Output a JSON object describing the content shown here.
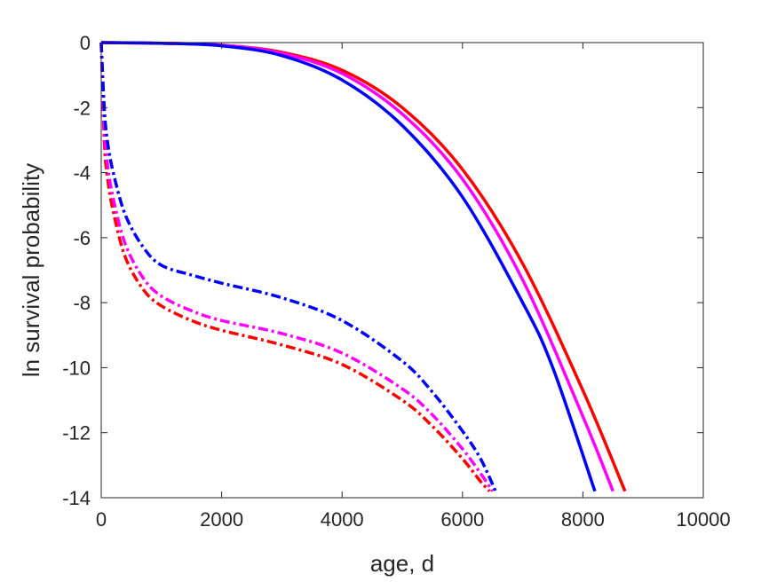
{
  "chart_data": {
    "type": "line",
    "title": "",
    "xlabel": "age, d",
    "ylabel": "ln survival probability",
    "xlim": [
      0,
      10000
    ],
    "ylim": [
      -14,
      0
    ],
    "xticks": [
      0,
      2000,
      4000,
      6000,
      8000,
      10000
    ],
    "yticks": [
      0,
      -2,
      -4,
      -6,
      -8,
      -10,
      -12,
      -14
    ],
    "xtick_labels": [
      "0",
      "2000",
      "4000",
      "6000",
      "8000",
      "10000"
    ],
    "ytick_labels": [
      "0",
      "-2",
      "-4",
      "-6",
      "-8",
      "-10",
      "-12",
      "-14"
    ],
    "grid": false,
    "legend": "none",
    "series": [
      {
        "color": "#ff0000",
        "style": "solid",
        "x": [
          0,
          1000,
          2000,
          3000,
          4000,
          5000,
          6000,
          7000,
          8000,
          8700
        ],
        "y": [
          0,
          -0.02,
          -0.08,
          -0.3,
          -0.85,
          -2.0,
          -3.9,
          -6.8,
          -10.7,
          -13.8
        ]
      },
      {
        "color": "#ff00ff",
        "style": "solid",
        "x": [
          0,
          1000,
          2000,
          3000,
          4000,
          5000,
          6000,
          7000,
          8000,
          8500
        ],
        "y": [
          0,
          -0.02,
          -0.08,
          -0.33,
          -0.95,
          -2.2,
          -4.2,
          -7.3,
          -11.5,
          -13.8
        ]
      },
      {
        "color": "#0000ff",
        "style": "solid",
        "x": [
          0,
          1000,
          2000,
          3000,
          4000,
          5000,
          6000,
          7000,
          7500,
          8200
        ],
        "y": [
          0,
          -0.02,
          -0.1,
          -0.4,
          -1.15,
          -2.55,
          -4.75,
          -8.0,
          -10.0,
          -13.8
        ]
      },
      {
        "color": "#ff0000",
        "style": "dashdot",
        "x": [
          0,
          50,
          100,
          200,
          400,
          700,
          1000,
          1500,
          2000,
          3000,
          4000,
          5000,
          5500,
          6000,
          6300,
          6450
        ],
        "y": [
          0,
          -3.0,
          -4.1,
          -5.2,
          -6.6,
          -7.6,
          -8.1,
          -8.55,
          -8.85,
          -9.3,
          -9.9,
          -11.0,
          -11.8,
          -12.8,
          -13.5,
          -13.8
        ]
      },
      {
        "color": "#ff00ff",
        "style": "dashdot",
        "x": [
          0,
          50,
          100,
          200,
          400,
          700,
          1000,
          1500,
          2000,
          3000,
          4000,
          5000,
          5500,
          6000,
          6300,
          6500
        ],
        "y": [
          0,
          -2.6,
          -3.7,
          -4.8,
          -6.2,
          -7.25,
          -7.8,
          -8.25,
          -8.55,
          -8.95,
          -9.55,
          -10.65,
          -11.45,
          -12.5,
          -13.25,
          -13.8
        ]
      },
      {
        "color": "#0000ff",
        "style": "dashdot",
        "x": [
          0,
          50,
          100,
          200,
          400,
          700,
          1000,
          1500,
          2000,
          3000,
          4000,
          5000,
          5500,
          6000,
          6300,
          6550
        ],
        "y": [
          0,
          -2.0,
          -3.0,
          -4.0,
          -5.3,
          -6.3,
          -6.85,
          -7.15,
          -7.4,
          -7.85,
          -8.55,
          -9.8,
          -10.75,
          -11.95,
          -12.8,
          -13.8
        ]
      }
    ]
  }
}
